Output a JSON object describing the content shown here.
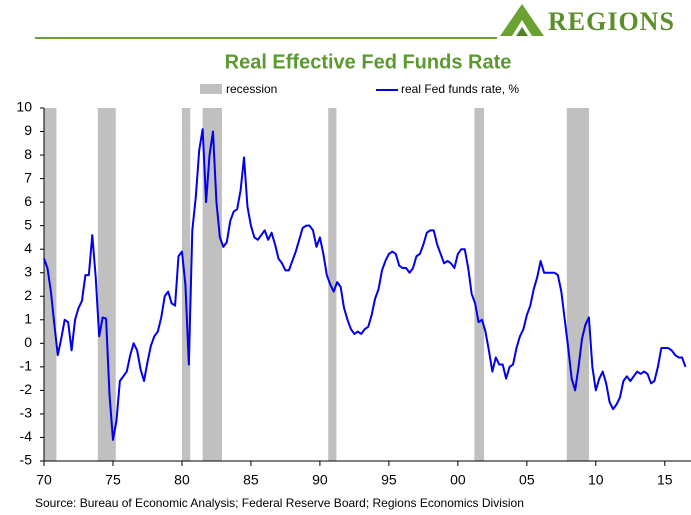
{
  "brand": "REGIONS",
  "chart_data": {
    "type": "line",
    "title": "Real Effective Fed Funds Rate",
    "source": "Source: Bureau of Economic Analysis; Federal Reserve Board; Regions Economics Division",
    "xlim": [
      1970,
      2016.9
    ],
    "ylim": [
      -5,
      10
    ],
    "yticks": [
      -5,
      -4,
      -3,
      -2,
      -1,
      0,
      1,
      2,
      3,
      4,
      5,
      6,
      7,
      8,
      9,
      10
    ],
    "xticks": [
      {
        "value": 1970,
        "label": "70"
      },
      {
        "value": 1975,
        "label": "75"
      },
      {
        "value": 1980,
        "label": "80"
      },
      {
        "value": 1985,
        "label": "85"
      },
      {
        "value": 1990,
        "label": "90"
      },
      {
        "value": 1995,
        "label": "95"
      },
      {
        "value": 2000,
        "label": "00"
      },
      {
        "value": 2005,
        "label": "05"
      },
      {
        "value": 2010,
        "label": "10"
      },
      {
        "value": 2015,
        "label": "15"
      }
    ],
    "shaded_regions": {
      "name": "recession",
      "color": "#c0c0c0",
      "spans": [
        [
          1970,
          1970.9
        ],
        [
          1973.9,
          1975.2
        ],
        [
          1980,
          1980.6
        ],
        [
          1981.5,
          1982.9
        ],
        [
          1990.6,
          1991.2
        ],
        [
          2001.2,
          2001.9
        ],
        [
          2007.9,
          2009.5
        ]
      ]
    },
    "x": [
      1970,
      1970.25,
      1970.5,
      1970.75,
      1971,
      1971.25,
      1971.5,
      1971.75,
      1972,
      1972.25,
      1972.5,
      1972.75,
      1973,
      1973.25,
      1973.5,
      1973.75,
      1974,
      1974.25,
      1974.5,
      1974.75,
      1975,
      1975.25,
      1975.5,
      1975.75,
      1976,
      1976.25,
      1976.5,
      1976.75,
      1977,
      1977.25,
      1977.5,
      1977.75,
      1978,
      1978.25,
      1978.5,
      1978.75,
      1979,
      1979.25,
      1979.5,
      1979.75,
      1980,
      1980.25,
      1980.5,
      1980.75,
      1981,
      1981.25,
      1981.5,
      1981.75,
      1982,
      1982.25,
      1982.5,
      1982.75,
      1983,
      1983.25,
      1983.5,
      1983.75,
      1984,
      1984.25,
      1984.5,
      1984.75,
      1985,
      1985.25,
      1985.5,
      1985.75,
      1986,
      1986.25,
      1986.5,
      1986.75,
      1987,
      1987.25,
      1987.5,
      1987.75,
      1988,
      1988.25,
      1988.5,
      1988.75,
      1989,
      1989.25,
      1989.5,
      1989.75,
      1990,
      1990.25,
      1990.5,
      1990.75,
      1991,
      1991.25,
      1991.5,
      1991.75,
      1992,
      1992.25,
      1992.5,
      1992.75,
      1993,
      1993.25,
      1993.5,
      1993.75,
      1994,
      1994.25,
      1994.5,
      1994.75,
      1995,
      1995.25,
      1995.5,
      1995.75,
      1996,
      1996.25,
      1996.5,
      1996.75,
      1997,
      1997.25,
      1997.5,
      1997.75,
      1998,
      1998.25,
      1998.5,
      1998.75,
      1999,
      1999.25,
      1999.5,
      1999.75,
      2000,
      2000.25,
      2000.5,
      2000.75,
      2001,
      2001.25,
      2001.5,
      2001.75,
      2002,
      2002.25,
      2002.5,
      2002.75,
      2003,
      2003.25,
      2003.5,
      2003.75,
      2004,
      2004.25,
      2004.5,
      2004.75,
      2005,
      2005.25,
      2005.5,
      2005.75,
      2006,
      2006.25,
      2006.5,
      2006.75,
      2007,
      2007.25,
      2007.5,
      2007.75,
      2008,
      2008.25,
      2008.5,
      2008.75,
      2009,
      2009.25,
      2009.5,
      2009.75,
      2010,
      2010.25,
      2010.5,
      2010.75,
      2011,
      2011.25,
      2011.5,
      2011.75,
      2012,
      2012.25,
      2012.5,
      2012.75,
      2013,
      2013.25,
      2013.5,
      2013.75,
      2014,
      2014.25,
      2014.5,
      2014.75,
      2015,
      2015.25,
      2015.5,
      2015.75,
      2016,
      2016.25,
      2016.5
    ],
    "series": [
      {
        "name": "real Fed funds rate, %",
        "color": "#0000ee",
        "values": [
          3.6,
          3.2,
          2.2,
          0.8,
          -0.5,
          0.2,
          1.0,
          0.9,
          -0.3,
          1.0,
          1.5,
          1.8,
          2.9,
          2.9,
          4.6,
          2.8,
          0.3,
          1.1,
          1.05,
          -2.2,
          -4.1,
          -3.3,
          -1.6,
          -1.4,
          -1.2,
          -0.5,
          0.0,
          -0.3,
          -1.1,
          -1.6,
          -0.8,
          -0.1,
          0.3,
          0.5,
          1.1,
          2.0,
          2.2,
          1.7,
          1.6,
          3.7,
          3.9,
          2.5,
          -0.9,
          4.8,
          6.2,
          8.2,
          9.1,
          6.0,
          8.0,
          9.0,
          6.0,
          4.5,
          4.1,
          4.3,
          5.2,
          5.6,
          5.7,
          6.5,
          7.9,
          5.8,
          5.0,
          4.5,
          4.4,
          4.6,
          4.8,
          4.4,
          4.7,
          4.2,
          3.6,
          3.4,
          3.1,
          3.1,
          3.5,
          3.9,
          4.4,
          4.9,
          5.0,
          5.0,
          4.8,
          4.1,
          4.5,
          3.8,
          2.9,
          2.5,
          2.2,
          2.6,
          2.4,
          1.5,
          1.0,
          0.6,
          0.4,
          0.5,
          0.4,
          0.6,
          0.7,
          1.2,
          1.9,
          2.3,
          3.1,
          3.5,
          3.8,
          3.9,
          3.8,
          3.3,
          3.2,
          3.2,
          3.0,
          3.2,
          3.7,
          3.8,
          4.2,
          4.7,
          4.8,
          4.8,
          4.2,
          3.8,
          3.4,
          3.5,
          3.4,
          3.2,
          3.8,
          4.0,
          4.0,
          3.2,
          2.1,
          1.7,
          0.9,
          1.0,
          0.5,
          -0.3,
          -1.2,
          -0.6,
          -0.9,
          -0.9,
          -1.5,
          -1.0,
          -0.9,
          -0.2,
          0.3,
          0.6,
          1.2,
          1.6,
          2.3,
          2.8,
          3.5,
          3.0,
          3.0,
          3.0,
          3.0,
          2.9,
          2.2,
          1.0,
          -0.2,
          -1.5,
          -2.0,
          -1.0,
          0.2,
          0.8,
          1.1,
          -1.0,
          -2.0,
          -1.5,
          -1.2,
          -1.7,
          -2.5,
          -2.8,
          -2.6,
          -2.3,
          -1.6,
          -1.4,
          -1.6,
          -1.4,
          -1.2,
          -1.3,
          -1.2,
          -1.3,
          -1.7,
          -1.6,
          -1.0,
          -0.2,
          -0.2,
          -0.2,
          -0.3,
          -0.5,
          -0.6,
          -0.6,
          -1.0
        ]
      }
    ]
  }
}
